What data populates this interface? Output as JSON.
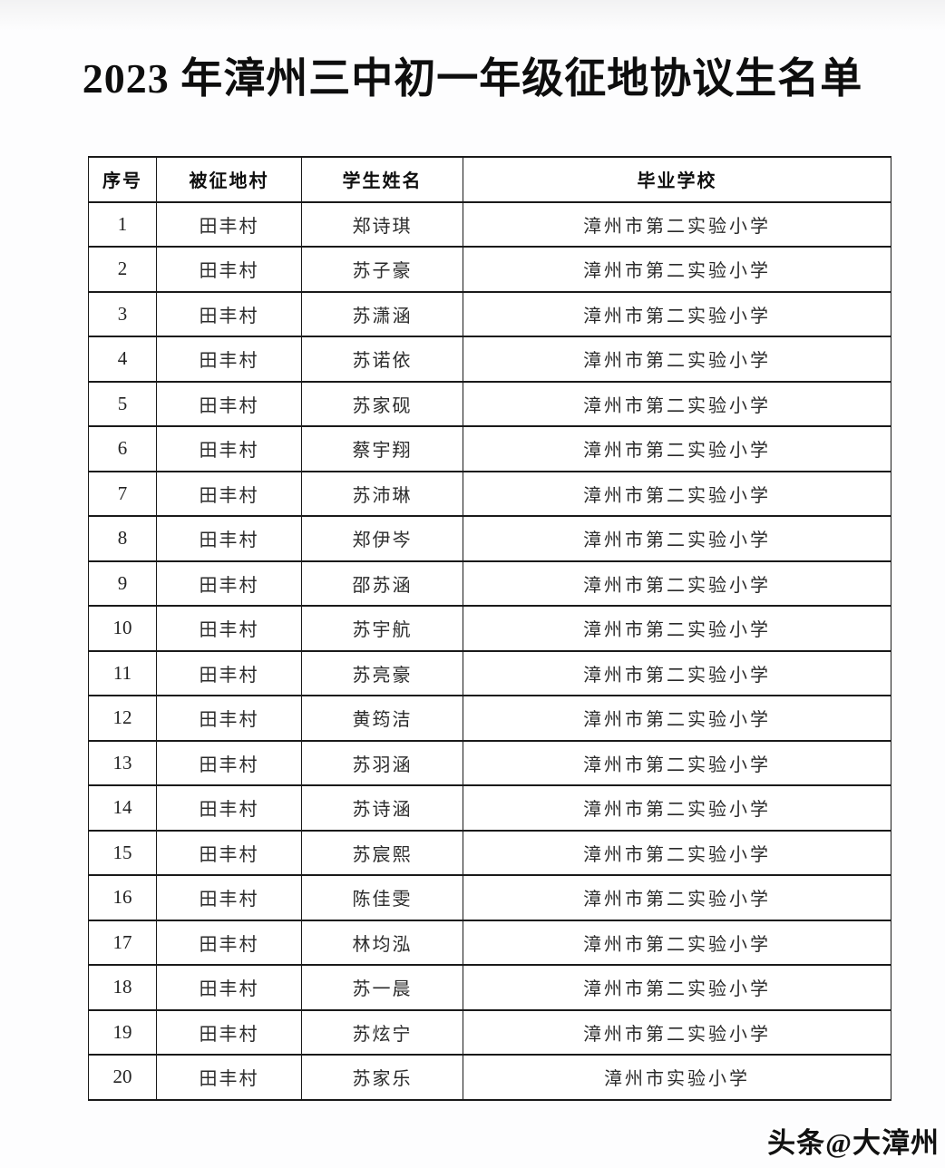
{
  "page": {
    "title": "2023 年漳州三中初一年级征地协议生名单",
    "watermark": "头条@大漳州"
  },
  "table": {
    "headers": {
      "no": "序号",
      "village": "被征地村",
      "name": "学生姓名",
      "school": "毕业学校"
    },
    "rows": [
      {
        "no": "1",
        "village": "田丰村",
        "name": "郑诗琪",
        "school": "漳州市第二实验小学"
      },
      {
        "no": "2",
        "village": "田丰村",
        "name": "苏子豪",
        "school": "漳州市第二实验小学"
      },
      {
        "no": "3",
        "village": "田丰村",
        "name": "苏潇涵",
        "school": "漳州市第二实验小学"
      },
      {
        "no": "4",
        "village": "田丰村",
        "name": "苏诺依",
        "school": "漳州市第二实验小学"
      },
      {
        "no": "5",
        "village": "田丰村",
        "name": "苏家砚",
        "school": "漳州市第二实验小学"
      },
      {
        "no": "6",
        "village": "田丰村",
        "name": "蔡宇翔",
        "school": "漳州市第二实验小学"
      },
      {
        "no": "7",
        "village": "田丰村",
        "name": "苏沛琳",
        "school": "漳州市第二实验小学"
      },
      {
        "no": "8",
        "village": "田丰村",
        "name": "郑伊岑",
        "school": "漳州市第二实验小学"
      },
      {
        "no": "9",
        "village": "田丰村",
        "name": "邵苏涵",
        "school": "漳州市第二实验小学"
      },
      {
        "no": "10",
        "village": "田丰村",
        "name": "苏宇航",
        "school": "漳州市第二实验小学"
      },
      {
        "no": "11",
        "village": "田丰村",
        "name": "苏亮豪",
        "school": "漳州市第二实验小学"
      },
      {
        "no": "12",
        "village": "田丰村",
        "name": "黄筠洁",
        "school": "漳州市第二实验小学"
      },
      {
        "no": "13",
        "village": "田丰村",
        "name": "苏羽涵",
        "school": "漳州市第二实验小学"
      },
      {
        "no": "14",
        "village": "田丰村",
        "name": "苏诗涵",
        "school": "漳州市第二实验小学"
      },
      {
        "no": "15",
        "village": "田丰村",
        "name": "苏宸熙",
        "school": "漳州市第二实验小学"
      },
      {
        "no": "16",
        "village": "田丰村",
        "name": "陈佳雯",
        "school": "漳州市第二实验小学"
      },
      {
        "no": "17",
        "village": "田丰村",
        "name": "林均泓",
        "school": "漳州市第二实验小学"
      },
      {
        "no": "18",
        "village": "田丰村",
        "name": "苏一晨",
        "school": "漳州市第二实验小学"
      },
      {
        "no": "19",
        "village": "田丰村",
        "name": "苏炫宁",
        "school": "漳州市第二实验小学"
      },
      {
        "no": "20",
        "village": "田丰村",
        "name": "苏家乐",
        "school": "漳州市实验小学"
      }
    ]
  },
  "colors": {
    "border": "#1a1a1a",
    "text": "#2b2b2b",
    "background": "#fbfbfc"
  }
}
